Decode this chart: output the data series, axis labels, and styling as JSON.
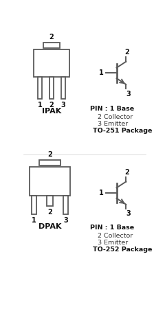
{
  "bg_color": "#ffffff",
  "line_color": "#5a5a5a",
  "text_color": "#333333",
  "bold_color": "#111111",
  "top_package_name": "IPAK",
  "top_package_type": "TO-251 Package",
  "top_pin_info": [
    "PIN : 1 Base",
    "2 Collector",
    "3 Emitter"
  ],
  "bot_package_name": "DPAK",
  "bot_package_type": "TO-252 Package",
  "bot_pin_info": [
    "PIN : 1 Base",
    "2 Collector",
    "3 Emitter"
  ]
}
